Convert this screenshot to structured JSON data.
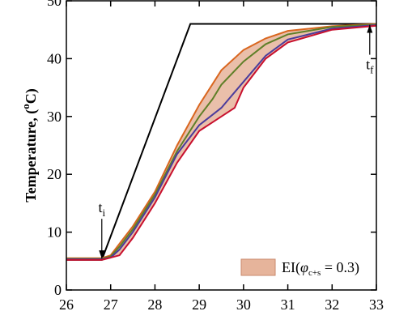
{
  "chart_data": {
    "type": "line",
    "ylabel_parts": [
      "Temperature, (",
      "o",
      "C)"
    ],
    "xlim": [
      26,
      33
    ],
    "ylim": [
      0,
      50
    ],
    "xticks": [
      26,
      27,
      28,
      29,
      30,
      31,
      32,
      33
    ],
    "yticks": [
      0,
      10,
      20,
      30,
      40,
      50
    ],
    "series": [
      {
        "color": "#000000",
        "x": [
          26,
          26.8,
          28.8,
          33
        ],
        "values": [
          5.2,
          5.2,
          46,
          46
        ]
      },
      {
        "color": "#d9661f",
        "x": [
          26,
          26.8,
          27,
          27.2,
          27.5,
          28,
          28.5,
          29,
          29.5,
          30,
          30.5,
          31,
          32,
          33
        ],
        "values": [
          5.5,
          5.5,
          6,
          8,
          11,
          17,
          25,
          32,
          38,
          41.5,
          43.5,
          44.8,
          45.6,
          46
        ]
      },
      {
        "color": "#5f7f28",
        "x": [
          26,
          26.8,
          27,
          27.2,
          27.5,
          28,
          28.5,
          29,
          29.3,
          29.5,
          30,
          30.5,
          31,
          32,
          33
        ],
        "values": [
          5.4,
          5.4,
          5.8,
          7.5,
          10.5,
          16.5,
          24,
          30,
          33,
          35.5,
          39.5,
          42.5,
          44.2,
          45.5,
          45.9
        ]
      },
      {
        "color": "#4b3c9c",
        "x": [
          26,
          26.8,
          27,
          27.2,
          27.5,
          28,
          28.5,
          29,
          29.5,
          30,
          30.5,
          31,
          32,
          33
        ],
        "values": [
          5.3,
          5.3,
          5.6,
          7,
          10,
          16,
          23.5,
          28.5,
          31.5,
          36,
          40.5,
          43.3,
          45.2,
          45.8
        ]
      },
      {
        "color": "#c8102e",
        "x": [
          26,
          26.8,
          27.2,
          27.5,
          28,
          28.5,
          29,
          29.5,
          29.8,
          30,
          30.5,
          31,
          32,
          33
        ],
        "values": [
          5.2,
          5.2,
          6,
          9,
          15,
          22,
          27.5,
          30,
          31.5,
          35,
          40,
          42.8,
          45,
          45.7
        ]
      }
    ],
    "band": {
      "color": "#e6b49b",
      "legend_parts": [
        "EI(",
        "φ",
        "c+s",
        " = 0.3)"
      ]
    },
    "annotations": [
      {
        "text": "t",
        "sub": "i",
        "x": 26.8,
        "y": 5.3
      },
      {
        "text": "t",
        "sub": "f",
        "x": 32.85,
        "y": 46
      }
    ]
  }
}
